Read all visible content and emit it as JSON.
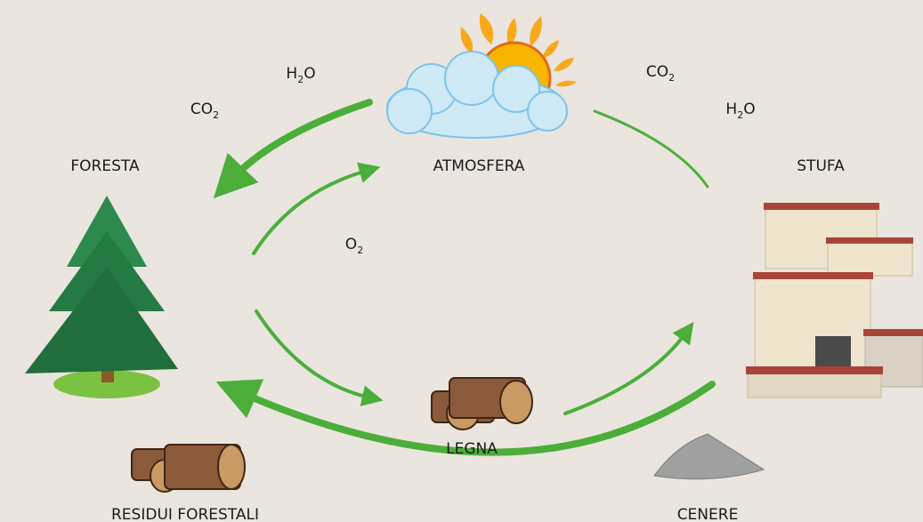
{
  "nodes": [
    {
      "label": "ATMOSFERA"
    },
    {
      "label": "FORESTA"
    },
    {
      "label": "STUFA"
    },
    {
      "label": "LEGNA"
    },
    {
      "label": "RESIDUI FORESTALI"
    },
    {
      "label": "CENERE"
    }
  ],
  "formulas": [
    {
      "base": "H",
      "sub": "2",
      "tail": "O"
    },
    {
      "base": "CO",
      "sub": "2"
    },
    {
      "base": "CO",
      "sub": "2"
    },
    {
      "base": "H",
      "sub": "2",
      "tail": "O"
    },
    {
      "base": "O",
      "sub": "2"
    }
  ]
}
